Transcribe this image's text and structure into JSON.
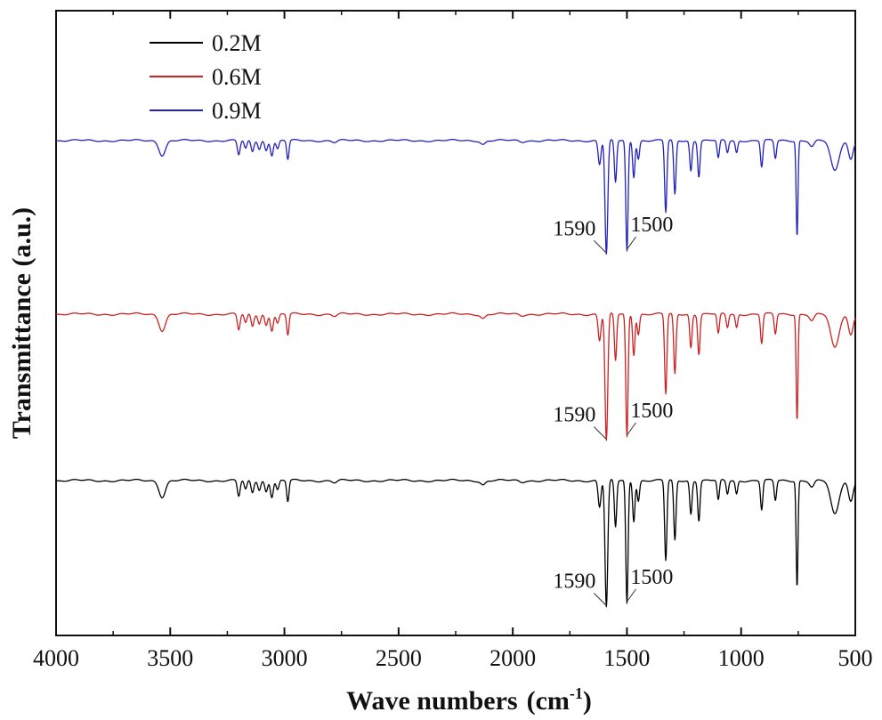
{
  "chart_data": {
    "type": "line",
    "title": "",
    "xlabel": "Wave numbers",
    "xlabel_unit_base": "(cm",
    "xlabel_unit_exp": "-1",
    "xlabel_unit_close": ")",
    "ylabel": "Transmittance (a.u.)",
    "xlim": [
      4000,
      500
    ],
    "x_ticks": [
      "4000",
      "3500",
      "3000",
      "2500",
      "2000",
      "1500",
      "1000",
      "500"
    ],
    "x_tick_values": [
      4000,
      3500,
      3000,
      2500,
      2000,
      1500,
      1000,
      500
    ],
    "y_ticks_shown": false,
    "legend_position": "top-left",
    "series": [
      {
        "name": "0.2M",
        "color": "#000000",
        "baseline": 0
      },
      {
        "name": "0.6M",
        "color": "#cc2222",
        "baseline": 1
      },
      {
        "name": "0.9M",
        "color": "#2222bb",
        "baseline": 2
      }
    ],
    "peaks": [
      {
        "x": 3535,
        "depth": 0.12,
        "width": 14
      },
      {
        "x": 3200,
        "depth": 0.12,
        "width": 6
      },
      {
        "x": 3170,
        "depth": 0.07,
        "width": 6
      },
      {
        "x": 3140,
        "depth": 0.09,
        "width": 6
      },
      {
        "x": 3110,
        "depth": 0.07,
        "width": 6
      },
      {
        "x": 3080,
        "depth": 0.08,
        "width": 6
      },
      {
        "x": 3055,
        "depth": 0.12,
        "width": 6
      },
      {
        "x": 3030,
        "depth": 0.07,
        "width": 6
      },
      {
        "x": 2985,
        "depth": 0.16,
        "width": 5
      },
      {
        "x": 2780,
        "depth": 0.015,
        "width": 10
      },
      {
        "x": 2130,
        "depth": 0.03,
        "width": 10
      },
      {
        "x": 1960,
        "depth": 0.01,
        "width": 10
      },
      {
        "x": 1620,
        "depth": 0.2,
        "width": 6
      },
      {
        "x": 1590,
        "depth": 0.95,
        "width": 6
      },
      {
        "x": 1550,
        "depth": 0.35,
        "width": 5
      },
      {
        "x": 1500,
        "depth": 0.92,
        "width": 5
      },
      {
        "x": 1470,
        "depth": 0.3,
        "width": 5
      },
      {
        "x": 1450,
        "depth": 0.15,
        "width": 5
      },
      {
        "x": 1330,
        "depth": 0.6,
        "width": 5
      },
      {
        "x": 1290,
        "depth": 0.45,
        "width": 5
      },
      {
        "x": 1220,
        "depth": 0.25,
        "width": 5
      },
      {
        "x": 1185,
        "depth": 0.3,
        "width": 5
      },
      {
        "x": 1100,
        "depth": 0.15,
        "width": 5
      },
      {
        "x": 1060,
        "depth": 0.1,
        "width": 5
      },
      {
        "x": 1020,
        "depth": 0.1,
        "width": 5
      },
      {
        "x": 910,
        "depth": 0.22,
        "width": 5
      },
      {
        "x": 850,
        "depth": 0.15,
        "width": 5
      },
      {
        "x": 755,
        "depth": 0.8,
        "width": 4
      },
      {
        "x": 690,
        "depth": 0.05,
        "width": 10
      },
      {
        "x": 590,
        "depth": 0.25,
        "width": 18
      },
      {
        "x": 520,
        "depth": 0.15,
        "width": 10
      }
    ],
    "annotations": [
      {
        "series": "0.2M",
        "peak": "1590",
        "text": "1590",
        "side": "left"
      },
      {
        "series": "0.2M",
        "peak": "1500",
        "text": "1500",
        "side": "right"
      },
      {
        "series": "0.6M",
        "peak": "1590",
        "text": "1590",
        "side": "left"
      },
      {
        "series": "0.6M",
        "peak": "1500",
        "text": "1500",
        "side": "right"
      },
      {
        "series": "0.9M",
        "peak": "1590",
        "text": "1590",
        "side": "left"
      },
      {
        "series": "0.9M",
        "peak": "1500",
        "text": "1500",
        "side": "right"
      }
    ]
  }
}
